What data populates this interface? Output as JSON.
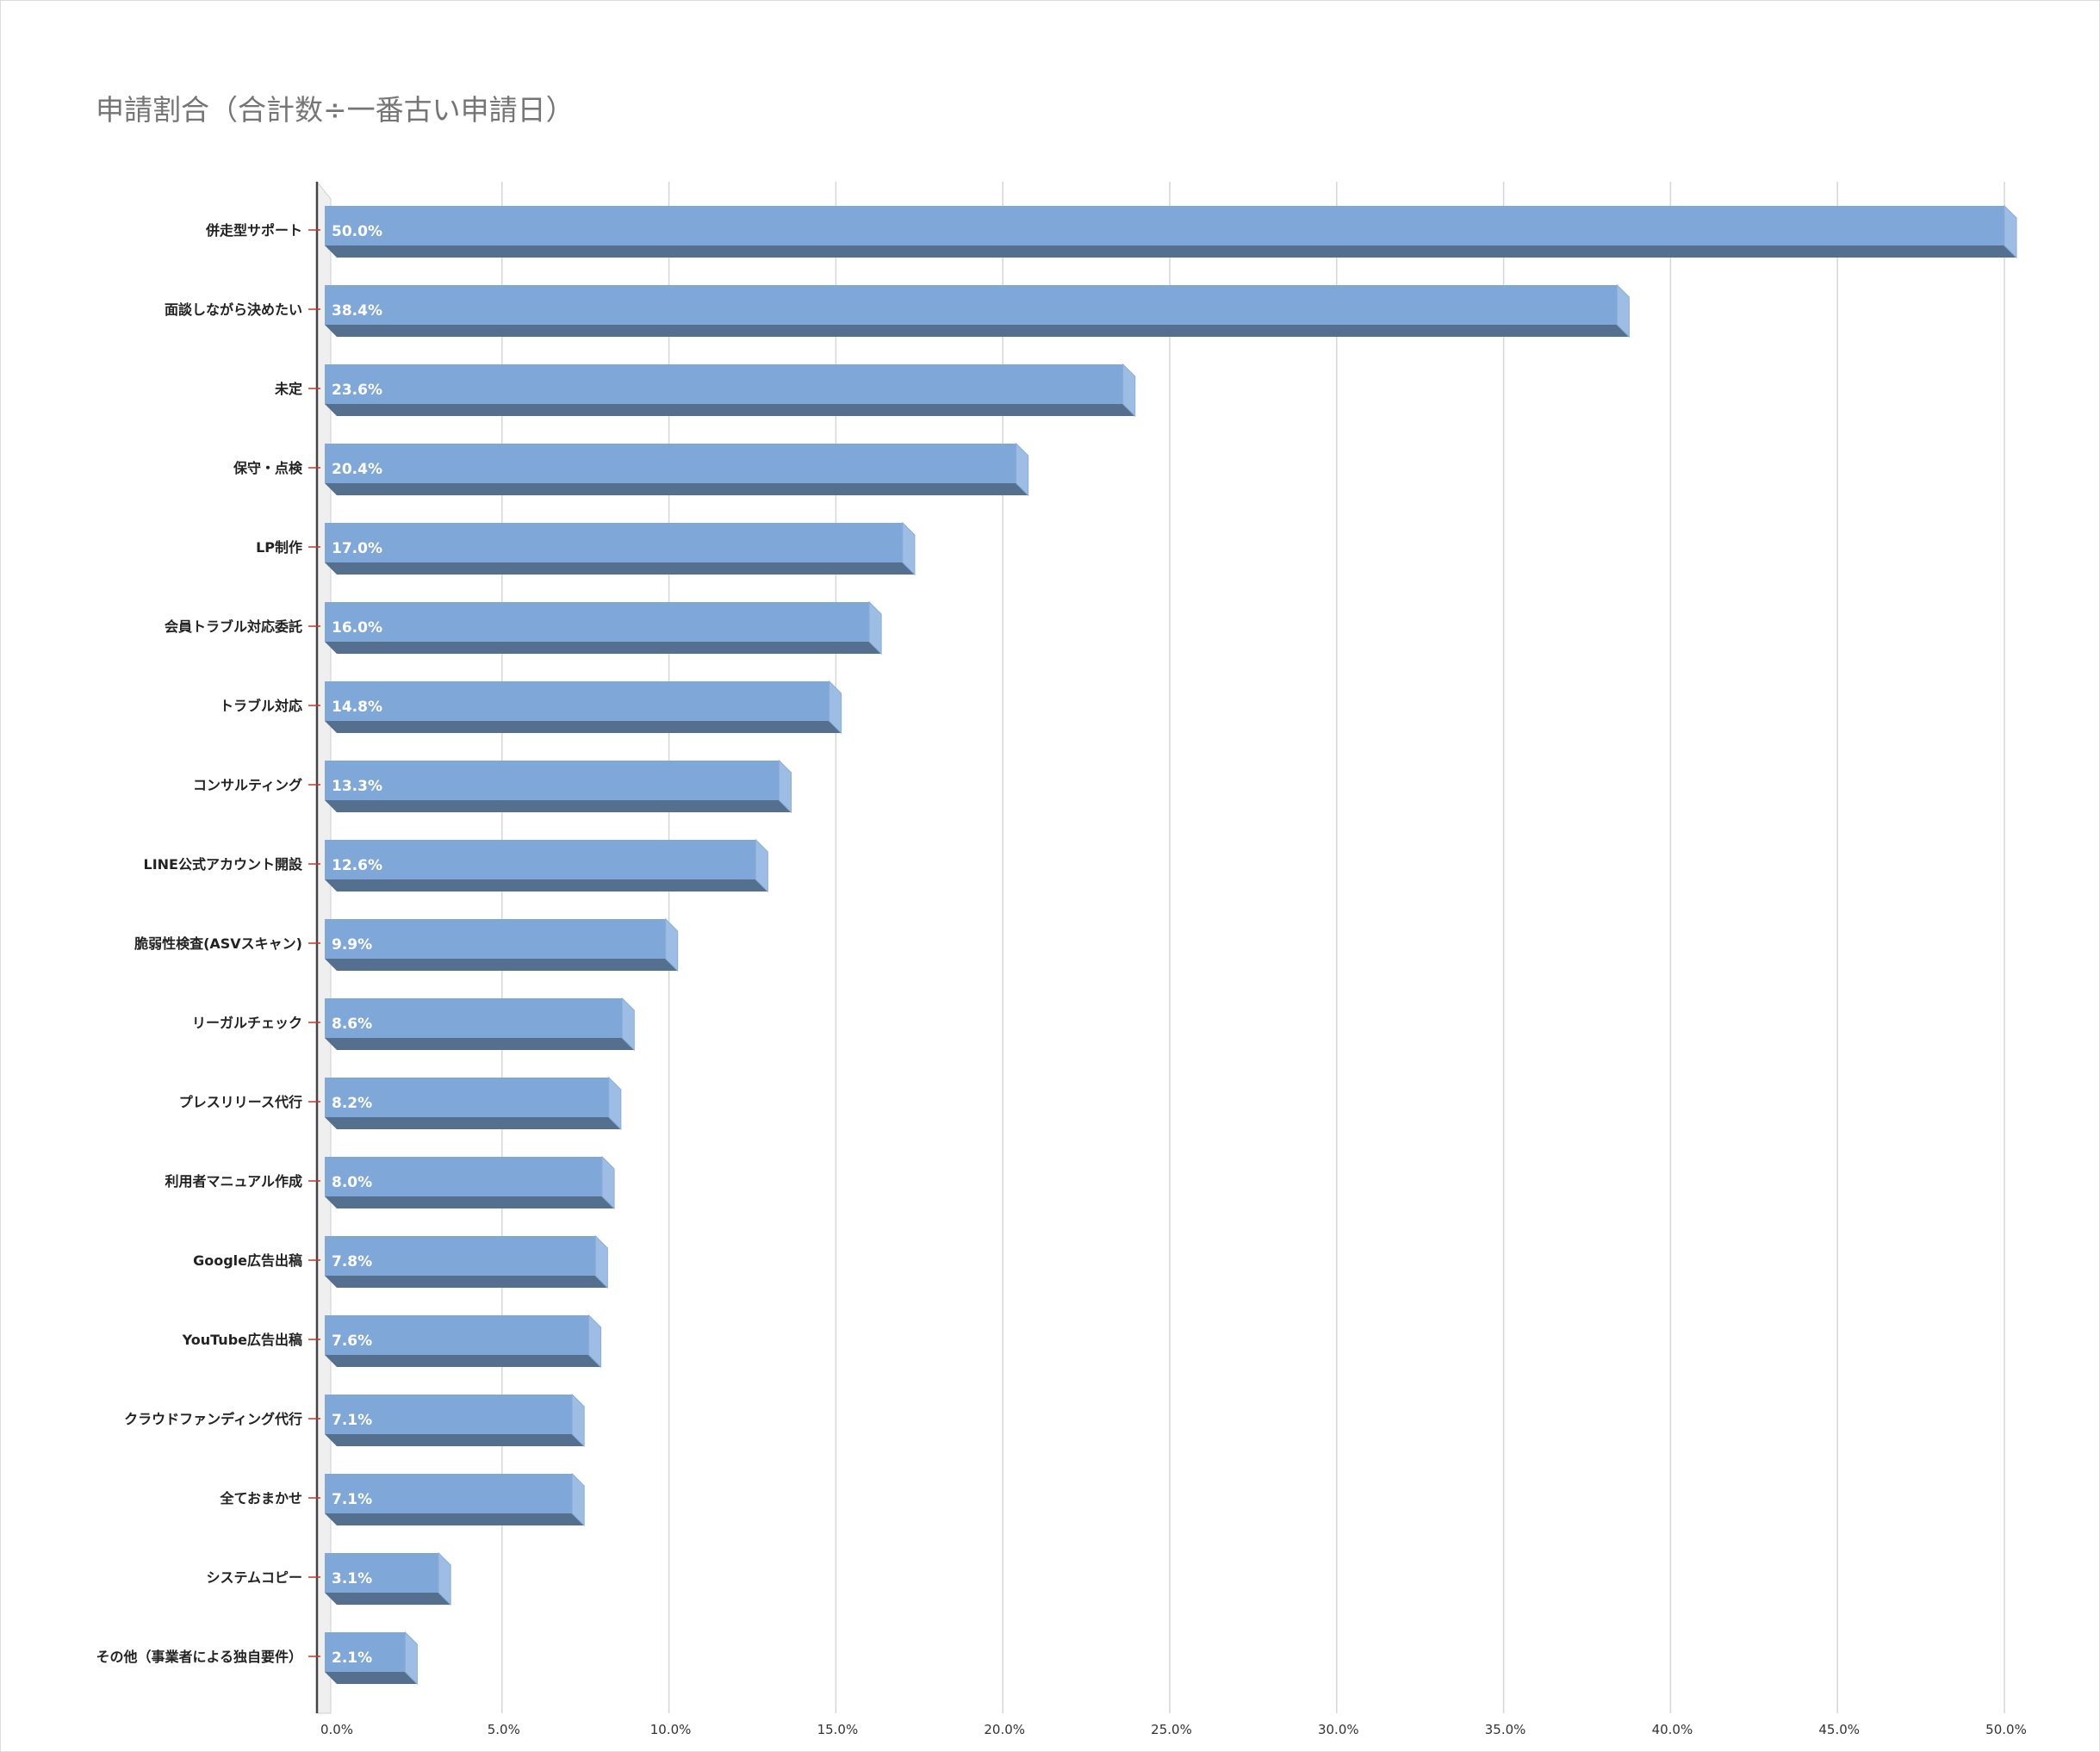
{
  "chart_data": {
    "type": "bar",
    "orientation": "horizontal",
    "style": "3d",
    "title": "申請割合（合計数÷一番古い申請日）",
    "xlabel": "",
    "ylabel": "",
    "xlim": [
      0,
      50
    ],
    "grid": true,
    "legend": "none",
    "colors": {
      "bar_front": "#7fa7d8",
      "bar_side": "#9ebde4",
      "bar_bottom": "#55708f",
      "grid": "#d6d6d6",
      "axis": "#444444",
      "tick_mark": "#c0392b"
    },
    "categories": [
      "併走型サポート",
      "面談しながら決めたい",
      "未定",
      "保守・点検",
      "LP制作",
      "会員トラブル対応委託",
      "トラブル対応",
      "コンサルティング",
      "LINE公式アカウント開設",
      "脆弱性検査(ASVスキャン)",
      "リーガルチェック",
      "プレスリリース代行",
      "利用者マニュアル作成",
      "Google広告出稿",
      "YouTube広告出稿",
      "クラウドファンディング代行",
      "全ておまかせ",
      "システムコピー",
      "その他（事業者による独自要件）"
    ],
    "values": [
      50.0,
      38.4,
      23.6,
      20.4,
      17.0,
      16.0,
      14.8,
      13.3,
      12.6,
      9.9,
      8.6,
      8.2,
      8.0,
      7.8,
      7.6,
      7.1,
      7.1,
      3.1,
      2.1
    ],
    "value_labels": [
      "50.0%",
      "38.4%",
      "23.6%",
      "20.4%",
      "17.0%",
      "16.0%",
      "14.8%",
      "13.3%",
      "12.6%",
      "9.9%",
      "8.6%",
      "8.2%",
      "8.0%",
      "7.8%",
      "7.6%",
      "7.1%",
      "7.1%",
      "3.1%",
      "2.1%"
    ],
    "x_ticks": [
      0,
      5,
      10,
      15,
      20,
      25,
      30,
      35,
      40,
      45,
      50
    ],
    "x_tick_labels": [
      "0.0%",
      "5.0%",
      "10.0%",
      "15.0%",
      "20.0%",
      "25.0%",
      "30.0%",
      "35.0%",
      "40.0%",
      "45.0%",
      "50.0%"
    ]
  }
}
